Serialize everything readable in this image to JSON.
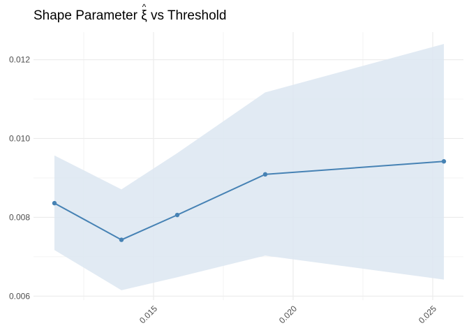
{
  "chart_data": {
    "type": "line",
    "title_prefix": "Shape Parameter ",
    "title_symbol": "ξ",
    "title_hat": "^",
    "title_suffix": " vs Threshold",
    "xlabel": "",
    "ylabel": "",
    "xlim": [
      0.0107,
      0.0261
    ],
    "ylim": [
      0.0059,
      0.0127
    ],
    "x_ticks": [
      {
        "value": 0.015,
        "label": "0.015"
      },
      {
        "value": 0.02,
        "label": "0.020"
      },
      {
        "value": 0.025,
        "label": "0.025"
      }
    ],
    "y_ticks": [
      {
        "value": 0.006,
        "label": "0.006"
      },
      {
        "value": 0.008,
        "label": "0.008"
      },
      {
        "value": 0.01,
        "label": "0.010"
      },
      {
        "value": 0.012,
        "label": "0.012"
      }
    ],
    "grid": true,
    "series": [
      {
        "x": [
          0.01145,
          0.01385,
          0.01585,
          0.019,
          0.0254
        ],
        "y": [
          0.00836,
          0.00743,
          0.00806,
          0.00909,
          0.00942
        ],
        "lower": [
          0.00717,
          0.00615,
          0.00648,
          0.00703,
          0.00642
        ],
        "upper": [
          0.00957,
          0.00871,
          0.00963,
          0.01117,
          0.0124
        ]
      }
    ],
    "colors": {
      "line": "#4682b4",
      "ribbon": "#dce6f1",
      "grid": "#ebebeb"
    }
  }
}
